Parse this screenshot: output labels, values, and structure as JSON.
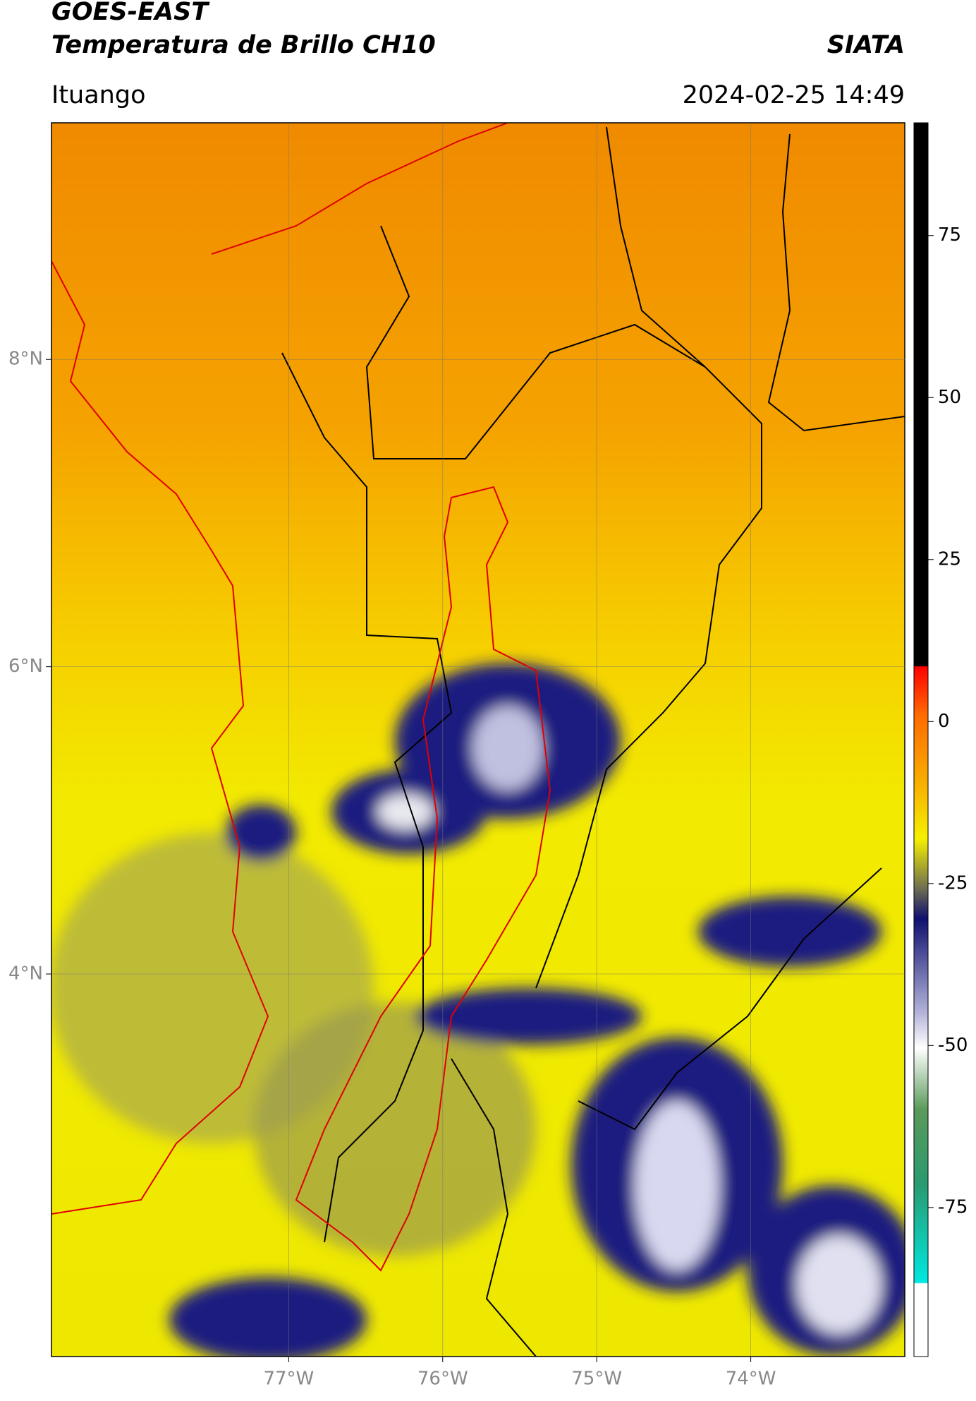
{
  "chart_data": {
    "type": "map",
    "title": "GOES-EAST",
    "subtitle": "Temperatura de Brillo CH10",
    "source": "SIATA",
    "location": "Ituango",
    "datetime": "2024-02-25 14:49",
    "xlim": [
      -78.54,
      -73.0
    ],
    "ylim": [
      1.51,
      9.54
    ],
    "xticks": [
      {
        "value": -77,
        "label": "77°W"
      },
      {
        "value": -76,
        "label": "76°W"
      },
      {
        "value": -75,
        "label": "75°W"
      },
      {
        "value": -74,
        "label": "74°W"
      }
    ],
    "yticks": [
      {
        "value": 8,
        "label": "8°N"
      },
      {
        "value": 6,
        "label": "6°N"
      },
      {
        "value": 4,
        "label": "4°N"
      }
    ],
    "grid": true,
    "colorbar_lim": [
      -98,
      92.4
    ],
    "colorbar_ticks": [
      75,
      50,
      25,
      0,
      -25,
      -50,
      -75
    ]
  }
}
